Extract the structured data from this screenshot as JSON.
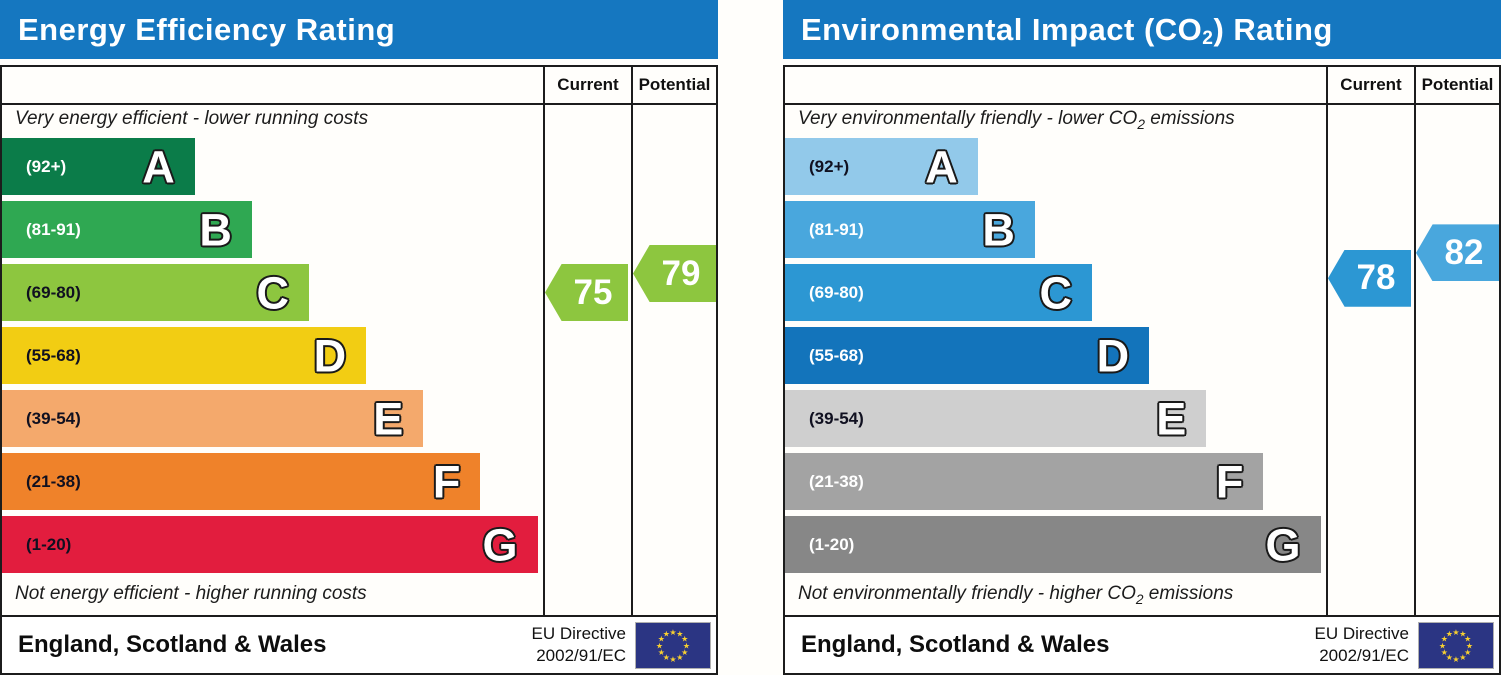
{
  "panels": [
    {
      "title": {
        "pre": "Energy Efficiency Rating",
        "sub": "",
        "post": ""
      },
      "title_bar_color": "#1577c0",
      "columns": {
        "current": "Current",
        "potential": "Potential"
      },
      "caption_top": {
        "pre": "Very energy efficient - lower running costs",
        "sub": "",
        "post": ""
      },
      "caption_bottom": {
        "pre": "Not energy efficient - higher running costs",
        "sub": "",
        "post": ""
      },
      "bands": [
        {
          "letter": "A",
          "range": "(92+)",
          "min": 92,
          "max": 100,
          "color": "#0b7c49",
          "range_color": "#ffffff",
          "width_pct": 27
        },
        {
          "letter": "B",
          "range": "(81-91)",
          "min": 81,
          "max": 91,
          "color": "#2fa852",
          "range_color": "#ffffff",
          "width_pct": 35
        },
        {
          "letter": "C",
          "range": "(69-80)",
          "min": 69,
          "max": 80,
          "color": "#8dc63f",
          "range_color": "#101020",
          "width_pct": 43
        },
        {
          "letter": "D",
          "range": "(55-68)",
          "min": 55,
          "max": 68,
          "color": "#f2cd13",
          "range_color": "#101020",
          "width_pct": 51
        },
        {
          "letter": "E",
          "range": "(39-54)",
          "min": 39,
          "max": 54,
          "color": "#f4a96c",
          "range_color": "#101020",
          "width_pct": 59
        },
        {
          "letter": "F",
          "range": "(21-38)",
          "min": 21,
          "max": 38,
          "color": "#ef822a",
          "range_color": "#101020",
          "width_pct": 67
        },
        {
          "letter": "G",
          "range": "(1-20)",
          "min": 1,
          "max": 20,
          "color": "#e21d3e",
          "range_color": "#101020",
          "width_pct": 75
        }
      ],
      "current": {
        "value": 75,
        "color": "#8dc63f"
      },
      "potential": {
        "value": 79,
        "color": "#8dc63f"
      },
      "footer": {
        "region": "England, Scotland & Wales",
        "directive_line1": "EU Directive",
        "directive_line2": "2002/91/EC"
      }
    },
    {
      "title": {
        "pre": "Environmental Impact (CO",
        "sub": "2",
        "post": ") Rating"
      },
      "title_bar_color": "#1577c0",
      "columns": {
        "current": "Current",
        "potential": "Potential"
      },
      "caption_top": {
        "pre": "Very environmentally friendly - lower CO",
        "sub": "2",
        "post": " emissions"
      },
      "caption_bottom": {
        "pre": "Not environmentally friendly - higher CO",
        "sub": "2",
        "post": " emissions"
      },
      "bands": [
        {
          "letter": "A",
          "range": "(92+)",
          "min": 92,
          "max": 100,
          "color": "#92c9ea",
          "range_color": "#101020",
          "width_pct": 27
        },
        {
          "letter": "B",
          "range": "(81-91)",
          "min": 81,
          "max": 91,
          "color": "#49a7dd",
          "range_color": "#ffffff",
          "width_pct": 35
        },
        {
          "letter": "C",
          "range": "(69-80)",
          "min": 69,
          "max": 80,
          "color": "#2c97d3",
          "range_color": "#ffffff",
          "width_pct": 43
        },
        {
          "letter": "D",
          "range": "(55-68)",
          "min": 55,
          "max": 68,
          "color": "#1374bb",
          "range_color": "#ffffff",
          "width_pct": 51
        },
        {
          "letter": "E",
          "range": "(39-54)",
          "min": 39,
          "max": 54,
          "color": "#cfcfcf",
          "range_color": "#101020",
          "width_pct": 59
        },
        {
          "letter": "F",
          "range": "(21-38)",
          "min": 21,
          "max": 38,
          "color": "#a3a3a3",
          "range_color": "#ffffff",
          "width_pct": 67
        },
        {
          "letter": "G",
          "range": "(1-20)",
          "min": 1,
          "max": 20,
          "color": "#878787",
          "range_color": "#ffffff",
          "width_pct": 75
        }
      ],
      "current": {
        "value": 78,
        "color": "#2c97d3"
      },
      "potential": {
        "value": 82,
        "color": "#49a7dd"
      },
      "footer": {
        "region": "England, Scotland & Wales",
        "directive_line1": "EU Directive",
        "directive_line2": "2002/91/EC"
      }
    }
  ],
  "chart_data": [
    {
      "type": "bar",
      "title": "Energy Efficiency Rating",
      "categories": [
        "A (92+)",
        "B (81-91)",
        "C (69-80)",
        "D (55-68)",
        "E (39-54)",
        "F (21-38)",
        "G (1-20)"
      ],
      "band_widths_pct": [
        27,
        35,
        43,
        51,
        59,
        67,
        75
      ],
      "current": 75,
      "current_band": "C",
      "potential": 79,
      "potential_band": "C",
      "top_note": "Very energy efficient - lower running costs",
      "bottom_note": "Not energy efficient - higher running costs",
      "region": "England, Scotland & Wales",
      "directive": "EU Directive 2002/91/EC"
    },
    {
      "type": "bar",
      "title": "Environmental Impact (CO2) Rating",
      "categories": [
        "A (92+)",
        "B (81-91)",
        "C (69-80)",
        "D (55-68)",
        "E (39-54)",
        "F (21-38)",
        "G (1-20)"
      ],
      "band_widths_pct": [
        27,
        35,
        43,
        51,
        59,
        67,
        75
      ],
      "current": 78,
      "current_band": "C",
      "potential": 82,
      "potential_band": "B",
      "top_note": "Very environmentally friendly - lower CO2 emissions",
      "bottom_note": "Not environmentally friendly - higher CO2 emissions",
      "region": "England, Scotland & Wales",
      "directive": "EU Directive 2002/91/EC"
    }
  ]
}
